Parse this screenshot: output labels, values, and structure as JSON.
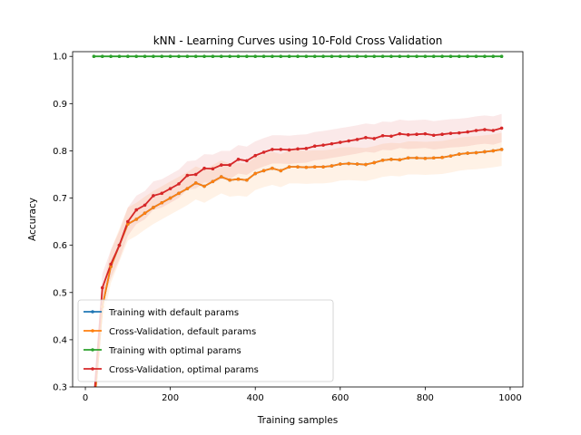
{
  "chart_data": {
    "type": "line",
    "title": "kNN - Learning Curves using 10-Fold Cross Validation",
    "xlabel": "Training samples",
    "ylabel": "Accuracy",
    "xlim": [
      -30,
      1030
    ],
    "ylim": [
      0.3,
      1.01
    ],
    "xticks": [
      0,
      200,
      400,
      600,
      800,
      1000
    ],
    "yticks": [
      0.3,
      0.4,
      0.5,
      0.6,
      0.7,
      0.8,
      0.9,
      1.0
    ],
    "x": [
      20,
      40,
      60,
      80,
      100,
      120,
      140,
      160,
      180,
      200,
      220,
      240,
      260,
      280,
      300,
      320,
      340,
      360,
      380,
      400,
      420,
      440,
      460,
      480,
      500,
      520,
      540,
      560,
      580,
      600,
      620,
      640,
      660,
      680,
      700,
      720,
      740,
      760,
      780,
      800,
      820,
      840,
      860,
      880,
      900,
      920,
      940,
      960,
      980
    ],
    "legend_position": "lower-left",
    "series": [
      {
        "name": "Training with default params",
        "color": "#1f77b4",
        "values": [
          0.25,
          0.47,
          0.555,
          0.6,
          0.645,
          0.655,
          0.668,
          0.68,
          0.69,
          0.7,
          0.71,
          0.72,
          0.732,
          0.725,
          0.735,
          0.745,
          0.738,
          0.74,
          0.738,
          0.752,
          0.758,
          0.763,
          0.758,
          0.766,
          0.766,
          0.765,
          0.766,
          0.766,
          0.768,
          0.772,
          0.773,
          0.772,
          0.771,
          0.775,
          0.78,
          0.782,
          0.781,
          0.785,
          0.785,
          0.784,
          0.785,
          0.786,
          0.789,
          0.793,
          0.795,
          0.796,
          0.798,
          0.8,
          0.803
        ]
      },
      {
        "name": "Cross-Validation, default params",
        "color": "#ff7f0e",
        "band": 0.035,
        "values": [
          0.25,
          0.47,
          0.555,
          0.6,
          0.645,
          0.655,
          0.668,
          0.68,
          0.69,
          0.7,
          0.71,
          0.72,
          0.732,
          0.725,
          0.735,
          0.745,
          0.738,
          0.74,
          0.738,
          0.752,
          0.758,
          0.763,
          0.758,
          0.766,
          0.766,
          0.765,
          0.766,
          0.766,
          0.768,
          0.772,
          0.773,
          0.772,
          0.771,
          0.775,
          0.78,
          0.782,
          0.781,
          0.785,
          0.785,
          0.784,
          0.785,
          0.786,
          0.789,
          0.793,
          0.795,
          0.796,
          0.798,
          0.8,
          0.803
        ]
      },
      {
        "name": "Training with optimal params",
        "color": "#2ca02c",
        "values": [
          1,
          1,
          1,
          1,
          1,
          1,
          1,
          1,
          1,
          1,
          1,
          1,
          1,
          1,
          1,
          1,
          1,
          1,
          1,
          1,
          1,
          1,
          1,
          1,
          1,
          1,
          1,
          1,
          1,
          1,
          1,
          1,
          1,
          1,
          1,
          1,
          1,
          1,
          1,
          1,
          1,
          1,
          1,
          1,
          1,
          1,
          1,
          1,
          1
        ]
      },
      {
        "name": "Cross-Validation, optimal params",
        "color": "#d62728",
        "band": 0.03,
        "values": [
          0.27,
          0.51,
          0.56,
          0.6,
          0.65,
          0.675,
          0.685,
          0.705,
          0.71,
          0.72,
          0.73,
          0.748,
          0.75,
          0.763,
          0.762,
          0.77,
          0.77,
          0.782,
          0.779,
          0.79,
          0.797,
          0.803,
          0.803,
          0.802,
          0.804,
          0.805,
          0.81,
          0.812,
          0.815,
          0.818,
          0.821,
          0.824,
          0.828,
          0.826,
          0.832,
          0.831,
          0.836,
          0.834,
          0.835,
          0.836,
          0.833,
          0.835,
          0.837,
          0.838,
          0.84,
          0.843,
          0.845,
          0.843,
          0.848
        ]
      }
    ]
  }
}
